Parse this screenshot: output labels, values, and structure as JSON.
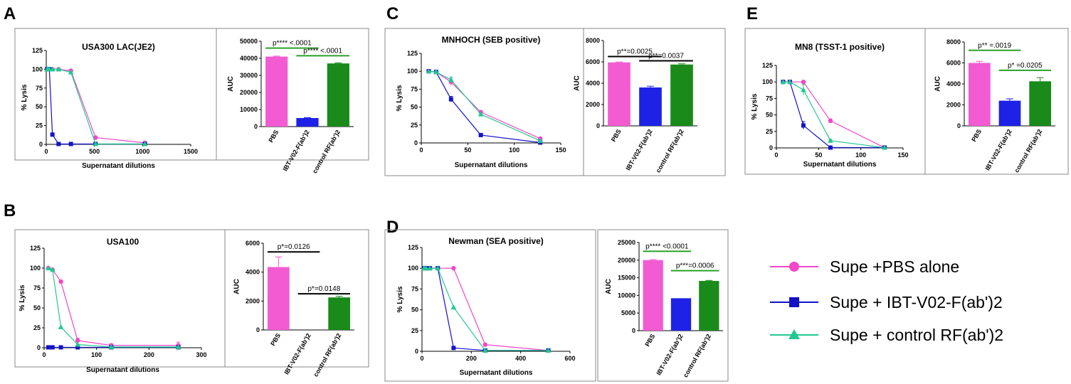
{
  "colors": {
    "pbs": "#f048c8",
    "ibt": "#1212c8",
    "control": "#22c890",
    "bar_pbs": "#f25bd2",
    "bar_ibt": "#1e22e6",
    "bar_control": "#1a8a1a",
    "sig_line_green": "#2aa02a",
    "sig_line_black": "#000000",
    "frame": "#888888"
  },
  "legend": {
    "items": [
      {
        "key": "pbs",
        "label": "Supe +PBS alone",
        "marker": "circle"
      },
      {
        "key": "ibt",
        "label": "Supe + IBT-V02-F(ab')2",
        "marker": "square"
      },
      {
        "key": "control",
        "label": "Supe + control RF(ab')2",
        "marker": "triangle"
      }
    ]
  },
  "chart_data": [
    {
      "id": "A",
      "letter": "A",
      "type": "line",
      "title": "USA300 LAC(JE2)",
      "xlabel": "Supernatant dilutions",
      "ylabel": "% Lysis",
      "xlim": [
        0,
        1500
      ],
      "ylim": [
        0,
        125
      ],
      "xticks": [
        0,
        500,
        1000,
        1500
      ],
      "yticks": [
        0,
        25,
        50,
        75,
        100,
        125
      ],
      "series": [
        {
          "name": "Supe +PBS alone",
          "key": "pbs",
          "x": [
            8,
            16,
            32,
            64,
            128,
            256,
            512,
            1024
          ],
          "y": [
            100,
            100,
            100,
            100,
            100,
            98,
            9,
            2
          ]
        },
        {
          "name": "Supe + IBT-V02-F(ab')2",
          "key": "ibt",
          "x": [
            8,
            16,
            32,
            64,
            128,
            256,
            512,
            1024
          ],
          "y": [
            100,
            100,
            100,
            13,
            0.5,
            0.5,
            0.5,
            0.5
          ]
        },
        {
          "name": "Supe + control RF(ab')2",
          "key": "control",
          "x": [
            8,
            16,
            32,
            64,
            128,
            256,
            512,
            1024
          ],
          "y": [
            100,
            100,
            100,
            100,
            100,
            96,
            0.5,
            0.5
          ]
        }
      ],
      "bar": {
        "type": "bar",
        "ylabel": "AUC",
        "ylim": [
          0,
          50000
        ],
        "yticks": [
          0,
          10000,
          20000,
          30000,
          40000,
          50000
        ],
        "categories": [
          "PBS",
          "IBT-V02-F(ab')2",
          "control RF(ab')2"
        ],
        "values": [
          41000,
          5000,
          37000
        ],
        "errors": [
          300,
          200,
          300
        ],
        "stats": [
          {
            "text": "p**** <.0001",
            "from": 0,
            "to": 1,
            "line_y": 46000,
            "color": "green"
          },
          {
            "text": "p**** <.0001",
            "from": 1,
            "to": 2,
            "line_y": 41500,
            "color": "green"
          }
        ]
      }
    },
    {
      "id": "B",
      "letter": "B",
      "type": "line",
      "title": "USA100",
      "xlabel": "Supernatant dilutions",
      "ylabel": "% Lysis",
      "xlim": [
        0,
        300
      ],
      "ylim": [
        0,
        125
      ],
      "xticks": [
        0,
        100,
        200,
        300
      ],
      "yticks": [
        0,
        25,
        50,
        75,
        100,
        125
      ],
      "series": [
        {
          "name": "Supe +PBS alone",
          "key": "pbs",
          "x": [
            8,
            16,
            32,
            64,
            128,
            256
          ],
          "y": [
            100,
            98,
            83,
            9,
            3,
            3
          ],
          "err": [
            0,
            1,
            2,
            3,
            2,
            4
          ]
        },
        {
          "name": "Supe + IBT-V02-F(ab')2",
          "key": "ibt",
          "x": [
            8,
            16,
            32,
            64,
            128,
            256
          ],
          "y": [
            0.5,
            0.5,
            0.5,
            0.5,
            0.5,
            0.5
          ]
        },
        {
          "name": "Supe + control RF(ab')2",
          "key": "control",
          "x": [
            8,
            16,
            32,
            64,
            128,
            256
          ],
          "y": [
            100,
            98,
            26,
            4,
            1,
            1
          ]
        }
      ],
      "bar": {
        "type": "bar",
        "ylabel": "AUC",
        "ylim": [
          0,
          6000
        ],
        "yticks": [
          0,
          2000,
          4000,
          6000
        ],
        "categories": [
          "PBS",
          "IBT-V02-F(ab')2",
          "control RF(ab')2"
        ],
        "values": [
          4350,
          0,
          2250
        ],
        "errors": [
          700,
          0,
          80
        ],
        "stats": [
          {
            "text": "p*=0.0126",
            "from": 0,
            "to": 1,
            "line_y": 5400,
            "color": "black"
          },
          {
            "text": "p*=0.0148",
            "from": 1,
            "to": 2,
            "line_y": 2500,
            "color": "black"
          }
        ]
      }
    },
    {
      "id": "C",
      "letter": "C",
      "type": "line",
      "title": "MNHOCH (SEB positive)",
      "xlabel": "Supernatant dilutions",
      "ylabel": "% Lysis",
      "xlim": [
        0,
        150
      ],
      "ylim": [
        0,
        125
      ],
      "xticks": [
        0,
        50,
        100,
        150
      ],
      "yticks": [
        0,
        25,
        50,
        75,
        100,
        125
      ],
      "series": [
        {
          "name": "Supe +PBS alone",
          "key": "pbs",
          "x": [
            8,
            16,
            32,
            64,
            128
          ],
          "y": [
            100,
            99,
            85,
            43,
            6
          ],
          "err": [
            0,
            1,
            5,
            1,
            1
          ]
        },
        {
          "name": "Supe + IBT-V02-F(ab')2",
          "key": "ibt",
          "x": [
            8,
            16,
            32,
            64,
            128
          ],
          "y": [
            100,
            99,
            61,
            11,
            0.5
          ],
          "err": [
            0,
            1,
            4,
            1,
            0
          ]
        },
        {
          "name": "Supe + control RF(ab')2",
          "key": "control",
          "x": [
            8,
            16,
            32,
            64,
            128
          ],
          "y": [
            100,
            99,
            88,
            40,
            3
          ],
          "err": [
            0,
            1,
            4,
            1,
            0
          ]
        }
      ],
      "bar": {
        "type": "bar",
        "ylabel": "AUC",
        "ylim": [
          0,
          8000
        ],
        "yticks": [
          0,
          2000,
          4000,
          6000,
          8000
        ],
        "categories": [
          "PBS",
          "IBT-V02-F(ab')2",
          "control RF(ab')2"
        ],
        "values": [
          5950,
          3600,
          5750
        ],
        "errors": [
          40,
          120,
          70
        ],
        "stats": [
          {
            "text": "p**=0.0025",
            "from": 0,
            "to": 1,
            "line_y": 6500,
            "color": "black"
          },
          {
            "text": "p**=0.0037",
            "from": 1,
            "to": 2,
            "line_y": 6100,
            "color": "black"
          }
        ]
      }
    },
    {
      "id": "D",
      "letter": "D",
      "type": "line",
      "title": "Newman (SEA positive)",
      "xlabel": "Supernatant dilutions",
      "ylabel": "% Lysis",
      "xlim": [
        0,
        600
      ],
      "ylim": [
        0,
        125
      ],
      "xticks": [
        0,
        200,
        400,
        600
      ],
      "yticks": [
        0,
        25,
        50,
        75,
        100,
        125
      ],
      "series": [
        {
          "name": "Supe +PBS alone",
          "key": "pbs",
          "x": [
            8,
            16,
            32,
            64,
            128,
            256,
            512
          ],
          "y": [
            100,
            100,
            100,
            100,
            100,
            8,
            1
          ]
        },
        {
          "name": "Supe + IBT-V02-F(ab')2",
          "key": "ibt",
          "x": [
            8,
            16,
            32,
            64,
            128,
            256,
            512
          ],
          "y": [
            100,
            100,
            100,
            100,
            4,
            1,
            1
          ]
        },
        {
          "name": "Supe + control RF(ab')2",
          "key": "control",
          "x": [
            8,
            16,
            32,
            64,
            128,
            256,
            512
          ],
          "y": [
            100,
            100,
            100,
            100,
            53,
            1,
            1
          ]
        }
      ],
      "bar": {
        "type": "bar",
        "ylabel": "AUC",
        "ylim": [
          0,
          25000
        ],
        "yticks": [
          0,
          5000,
          10000,
          15000,
          20000,
          25000
        ],
        "categories": [
          "PBS",
          "IBT-V02-F(ab')2",
          "control RF(ab')2"
        ],
        "values": [
          20000,
          9200,
          14100
        ],
        "errors": [
          150,
          60,
          150
        ],
        "stats": [
          {
            "text": "p**** <0.0001",
            "from": 0,
            "to": 1,
            "line_y": 22500,
            "color": "green"
          },
          {
            "text": "p***=0.0006",
            "from": 1,
            "to": 2,
            "line_y": 17000,
            "color": "green"
          }
        ]
      }
    },
    {
      "id": "E",
      "letter": "E",
      "type": "line",
      "title": "MN8 (TSST-1 positive)",
      "xlabel": "Supernatant dilutions",
      "ylabel": "% Lysis",
      "xlim": [
        0,
        150
      ],
      "ylim": [
        0,
        125
      ],
      "xticks": [
        0,
        50,
        100,
        150
      ],
      "yticks": [
        0,
        25,
        50,
        75,
        100,
        125
      ],
      "series": [
        {
          "name": "Supe +PBS alone",
          "key": "pbs",
          "x": [
            8,
            16,
            32,
            64,
            128
          ],
          "y": [
            100,
            100,
            100,
            41,
            0.5
          ],
          "err": [
            0,
            0,
            1,
            3,
            0
          ]
        },
        {
          "name": "Supe + IBT-V02-F(ab')2",
          "key": "ibt",
          "x": [
            8,
            16,
            32,
            64,
            128
          ],
          "y": [
            100,
            100,
            34,
            0.5,
            0.5
          ],
          "err": [
            0,
            0,
            6,
            0,
            0
          ]
        },
        {
          "name": "Supe + control RF(ab')2",
          "key": "control",
          "x": [
            8,
            16,
            32,
            64,
            128
          ],
          "y": [
            100,
            100,
            88,
            11,
            0.5
          ],
          "err": [
            0,
            0,
            8,
            2,
            0
          ]
        }
      ],
      "bar": {
        "type": "bar",
        "ylabel": "AUC",
        "ylim": [
          0,
          8000
        ],
        "yticks": [
          0,
          2000,
          4000,
          6000,
          8000
        ],
        "categories": [
          "PBS",
          "IBT-V02-F(ab')2",
          "control RF(ab')2"
        ],
        "values": [
          6000,
          2400,
          4250
        ],
        "errors": [
          150,
          180,
          350
        ],
        "stats": [
          {
            "text": "p** =.0019",
            "from": 0,
            "to": 1,
            "line_y": 7200,
            "color": "green"
          },
          {
            "text": "p* =0.0205",
            "from": 1,
            "to": 2,
            "line_y": 5300,
            "color": "green"
          }
        ]
      }
    }
  ]
}
